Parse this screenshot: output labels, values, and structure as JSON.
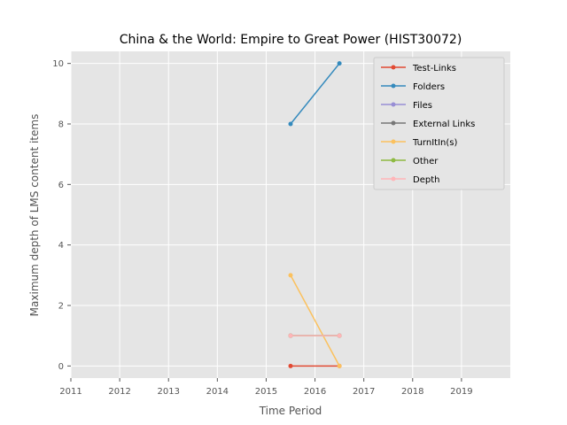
{
  "chart_data": {
    "type": "line",
    "title": "China & the World: Empire to Great Power (HIST30072)",
    "xlabel": "Time Period",
    "ylabel": "Maximum depth of LMS content items",
    "xlim": [
      2011,
      2020
    ],
    "ylim": [
      -0.4,
      10.4
    ],
    "xticks": [
      2011,
      2012,
      2013,
      2014,
      2015,
      2016,
      2017,
      2018,
      2019
    ],
    "yticks": [
      0,
      2,
      4,
      6,
      8,
      10
    ],
    "grid": true,
    "legend_position": "top-right",
    "x": [
      2015.5,
      2016.5
    ],
    "series": [
      {
        "name": "Test-Links",
        "color": "#E24A33",
        "values": [
          0,
          0
        ]
      },
      {
        "name": "Folders",
        "color": "#348ABD",
        "values": [
          8,
          10
        ]
      },
      {
        "name": "Files",
        "color": "#988ED5",
        "values": [
          1,
          1
        ]
      },
      {
        "name": "External Links",
        "color": "#777777",
        "values": [
          1,
          1
        ]
      },
      {
        "name": "TurnItIn(s)",
        "color": "#FBC15E",
        "values": [
          3,
          0
        ]
      },
      {
        "name": "Other",
        "color": "#8EBA42",
        "values": [
          1,
          1
        ]
      },
      {
        "name": "Depth",
        "color": "#FFB5B8",
        "values": [
          1,
          1
        ]
      }
    ]
  }
}
